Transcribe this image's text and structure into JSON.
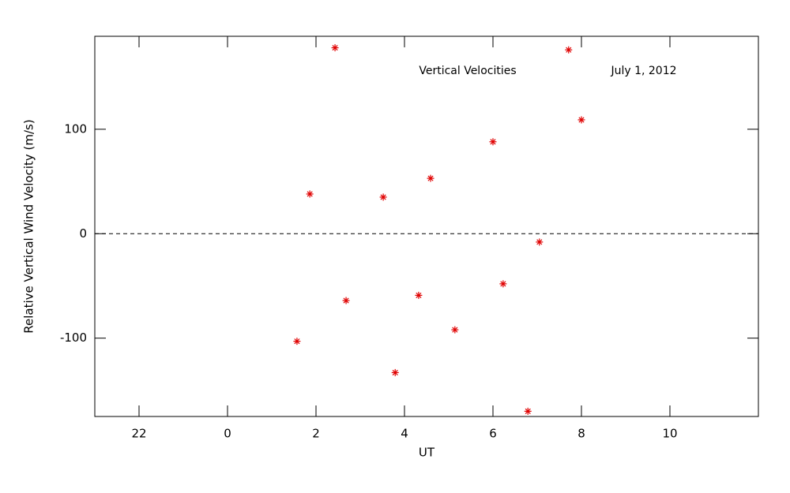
{
  "chart_data": {
    "type": "scatter",
    "title": "Vertical Velocities",
    "subtitle": "July 1, 2012",
    "x_label": "UT",
    "y_label": "Relative Vertical Wind Velocity (m/s)",
    "series": [
      {
        "color": "#e00000",
        "x": [
          1.57,
          1.86,
          2.43,
          2.68,
          3.52,
          3.79,
          4.32,
          4.59,
          5.14,
          6.0,
          6.23,
          6.79,
          7.05,
          7.71,
          8.0
        ],
        "values": [
          -103,
          38,
          178,
          -64,
          35,
          -133,
          -59,
          53,
          -92,
          88,
          -48,
          -170,
          -8,
          176,
          109
        ]
      }
    ],
    "xlim": [
      -3,
      12
    ],
    "xticks": [
      {
        "value": -2,
        "label": "22"
      },
      0,
      2,
      4,
      6,
      8,
      10
    ],
    "ylim": [
      -175,
      189
    ],
    "yticks": [
      -100,
      0,
      100
    ],
    "hline": 0
  }
}
